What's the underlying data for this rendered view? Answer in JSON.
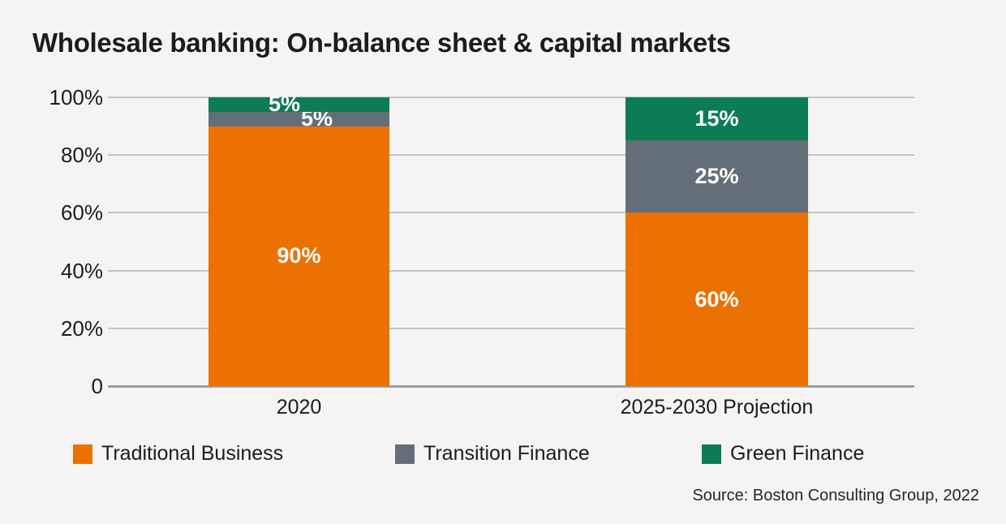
{
  "title": "Wholesale banking: On-balance sheet & capital markets",
  "source": "Source: Boston Consulting Group, 2022",
  "colors": {
    "background": "#F5F4F2",
    "orange": "#EB7200",
    "gray": "#646E78",
    "green": "#0C7C55",
    "gridline": "#C5C5C5",
    "baseline": "#9E9E9E",
    "text": "#1C1C1C",
    "value_label": "#FFFFFF"
  },
  "chart_data": {
    "type": "bar",
    "stacked": true,
    "title": "Wholesale banking: On-balance sheet & capital markets",
    "categories": [
      "2020",
      "2025-2030 Projection"
    ],
    "series": [
      {
        "name": "Traditional Business",
        "color": "#EB7200",
        "values": [
          90,
          60
        ]
      },
      {
        "name": "Transition Finance",
        "color": "#646E78",
        "values": [
          5,
          25
        ]
      },
      {
        "name": "Green Finance",
        "color": "#0C7C55",
        "values": [
          5,
          15
        ]
      }
    ],
    "value_labels": [
      [
        "90%",
        "5%",
        "5%"
      ],
      [
        "60%",
        "25%",
        "15%"
      ]
    ],
    "yticks": [
      {
        "value": 0,
        "label": "0"
      },
      {
        "value": 20,
        "label": "20%"
      },
      {
        "value": 40,
        "label": "40%"
      },
      {
        "value": 60,
        "label": "60%"
      },
      {
        "value": 80,
        "label": "80%"
      },
      {
        "value": 100,
        "label": "100%"
      }
    ],
    "ylim": [
      0,
      100
    ],
    "xlabel": "",
    "ylabel": "",
    "grid": true,
    "legend_position": "bottom"
  }
}
